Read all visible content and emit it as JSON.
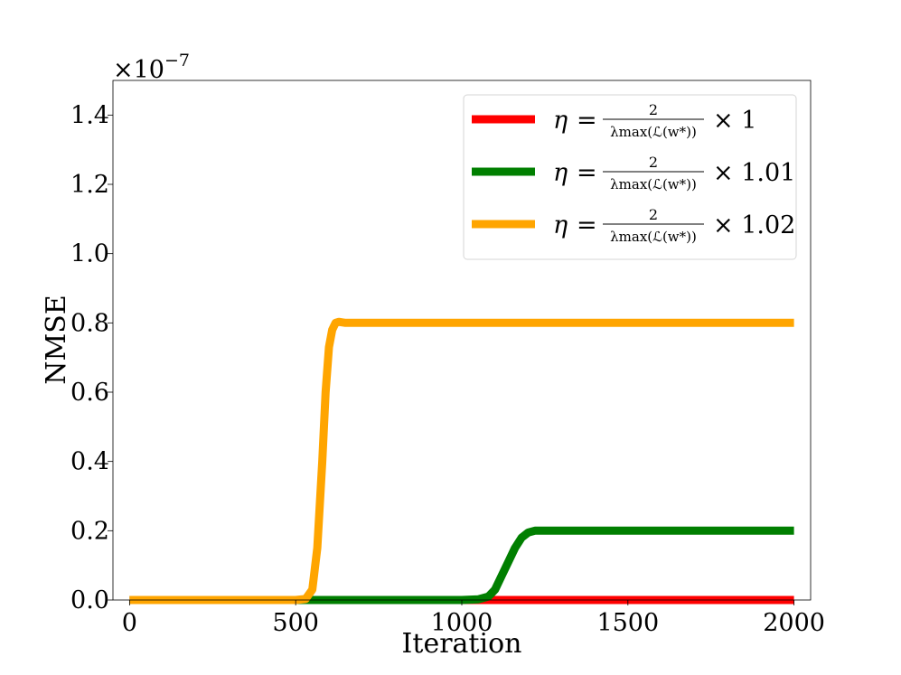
{
  "chart_data": {
    "type": "line",
    "title": "",
    "xlabel": "Iteration",
    "ylabel": "NMSE",
    "scale_label": "×10",
    "scale_exponent": "−7",
    "xlim": [
      -50,
      2050
    ],
    "ylim": [
      0,
      1.5
    ],
    "x_ticks": [
      0,
      500,
      1000,
      1500,
      2000
    ],
    "x_tick_labels": [
      "0",
      "500",
      "1000",
      "1500",
      "2000"
    ],
    "y_ticks": [
      0.0,
      0.2,
      0.4,
      0.6,
      0.8,
      1.0,
      1.2,
      1.4
    ],
    "y_tick_labels": [
      "0.0",
      "0.2",
      "0.4",
      "0.6",
      "0.8",
      "1.0",
      "1.2",
      "1.4"
    ],
    "grid": false,
    "legend_position": "upper right",
    "series": [
      {
        "color": "#ff0000",
        "legend": {
          "eta": "η",
          "eq": "=",
          "num": "2",
          "den": "λmax(ℒ(w*))",
          "mult": "× 1"
        },
        "x": [
          0,
          500,
          1000,
          1500,
          2000
        ],
        "y": [
          0,
          0,
          0,
          0,
          0
        ]
      },
      {
        "color": "#007f00",
        "legend": {
          "eta": "η",
          "eq": "=",
          "num": "2",
          "den": "λmax(ℒ(w*))",
          "mult": "× 1.01"
        },
        "x": [
          0,
          500,
          1000,
          1050,
          1080,
          1100,
          1120,
          1140,
          1160,
          1180,
          1200,
          1220,
          1250,
          1300,
          1500,
          2000
        ],
        "y": [
          0,
          0,
          0,
          0.002,
          0.01,
          0.03,
          0.07,
          0.11,
          0.15,
          0.18,
          0.195,
          0.2,
          0.2,
          0.2,
          0.2,
          0.2
        ]
      },
      {
        "color": "#ffa500",
        "legend": {
          "eta": "η",
          "eq": "=",
          "num": "2",
          "den": "λmax(ℒ(w*))",
          "mult": "× 1.02"
        },
        "x": [
          0,
          500,
          530,
          550,
          565,
          580,
          590,
          600,
          610,
          620,
          630,
          650,
          700,
          1000,
          1500,
          2000
        ],
        "y": [
          0,
          0,
          0.003,
          0.03,
          0.15,
          0.4,
          0.6,
          0.73,
          0.78,
          0.8,
          0.803,
          0.8,
          0.8,
          0.8,
          0.8,
          0.8
        ]
      }
    ]
  }
}
